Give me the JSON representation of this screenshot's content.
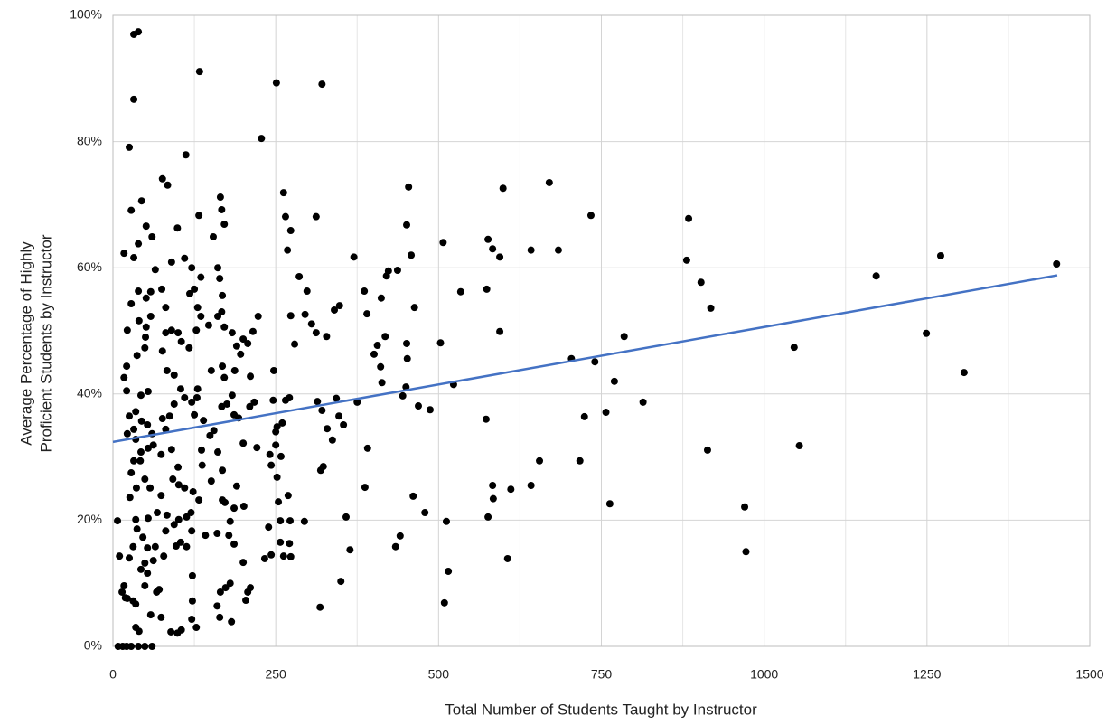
{
  "chart_data": {
    "type": "scatter",
    "x_label": "Total Number of Students Taught by Instructor",
    "y_label": [
      "Average Percentage of Highly",
      "Proficient Students by Instructor"
    ],
    "xlim": [
      0,
      1500
    ],
    "xticks": [
      0,
      250,
      500,
      750,
      1000,
      1250,
      1500
    ],
    "x_minor_grid": [
      125,
      375,
      625,
      875,
      1125,
      1375
    ],
    "ylim": [
      0,
      100
    ],
    "yticks": [
      {
        "value": 0,
        "label": "0%"
      },
      {
        "value": 20,
        "label": "20%"
      },
      {
        "value": 40,
        "label": "40%"
      },
      {
        "value": 60,
        "label": "60%"
      },
      {
        "value": 80,
        "label": "80%"
      },
      {
        "value": 100,
        "label": "100%"
      }
    ],
    "grid": true,
    "color": "#000000",
    "x": [
      7,
      10,
      8,
      15,
      21,
      28,
      39,
      49,
      60,
      32,
      39,
      32,
      25,
      28,
      44,
      17,
      32,
      39,
      51,
      60,
      76,
      84,
      112,
      133,
      228,
      251,
      321,
      165,
      167,
      132,
      171,
      154,
      262,
      265,
      268,
      273,
      312,
      454,
      451,
      458,
      507,
      599,
      594,
      583,
      576,
      642,
      670,
      684,
      734,
      881,
      884,
      903,
      918,
      1172,
      1271,
      1449,
      1046,
      1249,
      1307,
      1054,
      913,
      970,
      972,
      785,
      740,
      704,
      770,
      814,
      757,
      724,
      763,
      717,
      655,
      642,
      611,
      606,
      583,
      584,
      576,
      573,
      594,
      574,
      534,
      523,
      503,
      487,
      469,
      461,
      479,
      512,
      515,
      509,
      441,
      434,
      451,
      463,
      450,
      445,
      452,
      423,
      437,
      420,
      412,
      418,
      401,
      406,
      386,
      390,
      391,
      387,
      413,
      411,
      370,
      375,
      348,
      340,
      358,
      364,
      350,
      318,
      343,
      347,
      354,
      337,
      329,
      319,
      323,
      314,
      321,
      312,
      328,
      305,
      295,
      286,
      298,
      279,
      273,
      271,
      265,
      260,
      252,
      246,
      247,
      250,
      250,
      241,
      243,
      258,
      252,
      269,
      254,
      239,
      233,
      243,
      257,
      257,
      272,
      271,
      262,
      273,
      294,
      217,
      221,
      223,
      215,
      211,
      210,
      200,
      207,
      200,
      190,
      196,
      183,
      187,
      168,
      171,
      175,
      183,
      186,
      193,
      167,
      171,
      167,
      164,
      161,
      168,
      161,
      151,
      149,
      155,
      161,
      168,
      168,
      172,
      180,
      178,
      186,
      186,
      190,
      201,
      200,
      211,
      207,
      204,
      180,
      173,
      165,
      160,
      164,
      182,
      128,
      121,
      122,
      122,
      105,
      99,
      89,
      74,
      58,
      67,
      71,
      49,
      53,
      43,
      49,
      35,
      31,
      19,
      14,
      17,
      22,
      35,
      40,
      25,
      31,
      37,
      35,
      46,
      54,
      53,
      65,
      62,
      78,
      81,
      83,
      68,
      74,
      57,
      49,
      36,
      26,
      28,
      32,
      42,
      43,
      54,
      62,
      35,
      32,
      22,
      25,
      35,
      44,
      53,
      60,
      43,
      54,
      21,
      17,
      21,
      37,
      49,
      50,
      40,
      51,
      58,
      22,
      28,
      39,
      51,
      58,
      75,
      65,
      90,
      99,
      110,
      121,
      125,
      118,
      135,
      81,
      90,
      81,
      100,
      105,
      117,
      128,
      135,
      130,
      147,
      76,
      83,
      94,
      104,
      110,
      121,
      129,
      130,
      125,
      139,
      94,
      87,
      76,
      81,
      74,
      90,
      100,
      92,
      101,
      110,
      123,
      132,
      120,
      113,
      101,
      94,
      104,
      97,
      113,
      121,
      137,
      136,
      151,
      142,
      160
    ],
    "values": [
      19.9,
      14.3,
      0,
      0,
      0,
      0,
      0,
      0,
      0,
      97,
      97.4,
      86.7,
      79.1,
      69.1,
      70.6,
      62.3,
      61.6,
      63.8,
      66.6,
      64.9,
      74.1,
      73.1,
      77.9,
      91.1,
      80.5,
      89.3,
      89.1,
      71.2,
      69.2,
      68.3,
      66.9,
      64.9,
      71.9,
      68.1,
      62.8,
      65.9,
      68.1,
      72.8,
      66.8,
      62.0,
      64.0,
      72.6,
      61.7,
      63.0,
      64.5,
      62.8,
      73.5,
      62.8,
      68.3,
      61.2,
      67.8,
      57.7,
      53.6,
      58.7,
      61.9,
      60.6,
      47.4,
      49.6,
      43.4,
      31.8,
      31.1,
      22.1,
      15.0,
      49.1,
      45.1,
      45.6,
      42.0,
      38.7,
      37.1,
      36.4,
      22.6,
      29.4,
      29.4,
      25.5,
      24.9,
      13.9,
      25.5,
      23.4,
      20.5,
      36.0,
      49.9,
      56.6,
      56.2,
      41.5,
      48.1,
      37.5,
      38.1,
      23.8,
      21.2,
      19.8,
      11.9,
      6.9,
      17.5,
      15.8,
      48.0,
      53.7,
      41.1,
      39.7,
      45.6,
      59.5,
      59.6,
      58.7,
      55.2,
      49.1,
      46.3,
      47.7,
      56.3,
      52.7,
      31.4,
      25.2,
      41.8,
      44.3,
      61.7,
      38.7,
      54.0,
      53.3,
      20.5,
      15.3,
      10.3,
      6.2,
      39.3,
      36.5,
      35.1,
      32.7,
      34.5,
      27.9,
      28.5,
      38.8,
      37.4,
      49.7,
      49.1,
      51.1,
      52.6,
      58.6,
      56.3,
      47.9,
      52.4,
      39.4,
      39.0,
      35.4,
      34.8,
      39.0,
      43.7,
      31.9,
      34.0,
      30.4,
      28.7,
      30.1,
      26.8,
      23.9,
      22.9,
      18.9,
      13.9,
      14.5,
      19.9,
      16.5,
      19.9,
      16.3,
      14.3,
      14.2,
      19.8,
      38.7,
      31.5,
      52.3,
      49.9,
      42.8,
      38.0,
      32.2,
      48.0,
      48.7,
      47.6,
      46.3,
      49.7,
      43.7,
      44.4,
      42.6,
      38.4,
      39.8,
      36.7,
      36.2,
      38.0,
      50.6,
      53.0,
      58.3,
      60.0,
      55.6,
      52.3,
      43.7,
      33.4,
      34.2,
      30.8,
      27.9,
      23.2,
      22.8,
      19.8,
      17.6,
      16.2,
      21.9,
      25.4,
      22.2,
      13.3,
      9.3,
      8.6,
      7.3,
      10.0,
      9.3,
      8.6,
      6.4,
      4.6,
      3.9,
      3.0,
      4.3,
      7.2,
      11.2,
      2.6,
      2.1,
      2.3,
      4.6,
      5.0,
      8.6,
      9.0,
      9.6,
      11.6,
      12.2,
      13.2,
      6.7,
      7.2,
      7.7,
      8.6,
      9.6,
      7.6,
      3.0,
      2.4,
      14.0,
      15.8,
      18.6,
      20.1,
      17.3,
      20.3,
      15.6,
      15.8,
      13.6,
      14.3,
      18.3,
      20.8,
      21.2,
      23.9,
      25.1,
      26.5,
      25.1,
      23.6,
      27.5,
      29.4,
      29.4,
      30.8,
      31.4,
      31.9,
      32.8,
      34.4,
      33.7,
      36.5,
      37.2,
      35.7,
      35.1,
      33.7,
      39.8,
      40.4,
      40.5,
      42.6,
      44.4,
      46.1,
      47.3,
      49.0,
      51.6,
      50.6,
      52.3,
      50.1,
      54.3,
      56.3,
      55.2,
      56.2,
      56.6,
      59.7,
      60.9,
      66.3,
      61.5,
      60.0,
      56.6,
      55.9,
      58.5,
      53.7,
      50.1,
      49.7,
      49.7,
      48.3,
      47.3,
      50.1,
      52.3,
      53.7,
      50.9,
      46.8,
      43.7,
      43.0,
      40.8,
      39.4,
      38.7,
      39.4,
      40.8,
      36.7,
      35.8,
      38.4,
      36.5,
      36.1,
      34.4,
      30.4,
      31.2,
      28.4,
      26.5,
      25.6,
      25.1,
      24.5,
      23.2,
      21.2,
      20.5,
      20.1,
      19.3,
      16.5,
      15.9,
      15.8,
      18.3,
      28.7,
      31.1,
      26.2,
      17.6,
      17.9
    ],
    "trendline": {
      "x": [
        0,
        1450
      ],
      "values": [
        32.4,
        58.8
      ],
      "color": "#4472c4"
    }
  }
}
